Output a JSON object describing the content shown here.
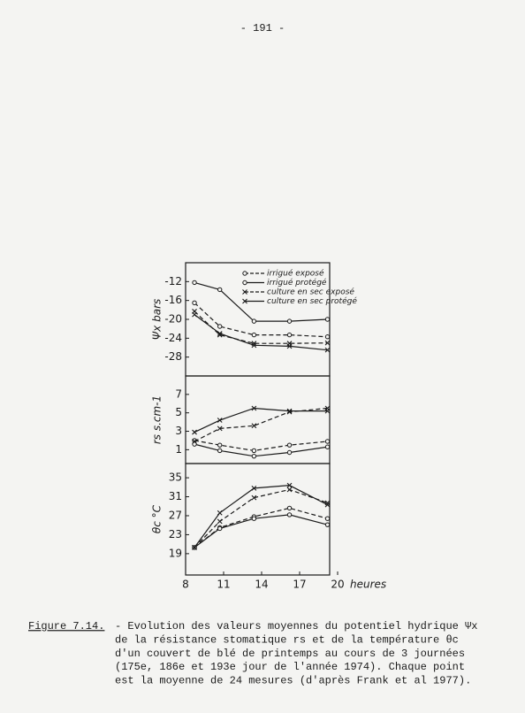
{
  "page_number": "- 191 -",
  "chart_data": [
    {
      "type": "line",
      "ylabel": "Ψx bars",
      "x": [
        8.7,
        10.7,
        13.4,
        16.2,
        19.2
      ],
      "xlim": [
        8,
        20
      ],
      "ylim": [
        -32,
        -8
      ],
      "yticks": [
        -12,
        -16,
        -20,
        -24,
        -28
      ],
      "legend": "top-right",
      "series": [
        {
          "name": "irrigué exposé",
          "color": "#1a1a1a",
          "dashed": true,
          "marker": "circle",
          "values": [
            -16.5,
            -21.5,
            -23.3,
            -23.3,
            -23.7
          ]
        },
        {
          "name": "irrigué protégé",
          "color": "#1a1a1a",
          "dashed": false,
          "marker": "circle",
          "values": [
            -12.2,
            -13.7,
            -20.4,
            -20.4,
            -20
          ]
        },
        {
          "name": "culture en sec exposé",
          "color": "#1a1a1a",
          "dashed": true,
          "marker": "cross",
          "values": [
            -18.3,
            -23.3,
            -25.1,
            -25.1,
            -25
          ]
        },
        {
          "name": "culture en sec protégé",
          "color": "#1a1a1a",
          "dashed": false,
          "marker": "cross",
          "values": [
            -19,
            -23,
            -25.5,
            -25.7,
            -26.5
          ]
        }
      ]
    },
    {
      "type": "line",
      "ylabel": "rs s.cm-1",
      "x": [
        8.7,
        10.7,
        13.4,
        16.2,
        19.2
      ],
      "xlim": [
        8,
        20
      ],
      "ylim": [
        -0.5,
        9
      ],
      "yticks": [
        7,
        5,
        3,
        1
      ],
      "series": [
        {
          "color": "#1a1a1a",
          "dashed": true,
          "marker": "circle",
          "values": [
            2.0,
            1.5,
            0.9,
            1.5,
            1.9
          ]
        },
        {
          "color": "#1a1a1a",
          "dashed": false,
          "marker": "circle",
          "values": [
            1.6,
            0.9,
            0.3,
            0.7,
            1.3
          ]
        },
        {
          "color": "#1a1a1a",
          "dashed": true,
          "marker": "cross",
          "values": [
            1.9,
            3.3,
            3.6,
            5.1,
            5.5
          ]
        },
        {
          "color": "#1a1a1a",
          "dashed": false,
          "marker": "cross",
          "values": [
            2.9,
            4.2,
            5.5,
            5.2,
            5.2
          ]
        }
      ]
    },
    {
      "type": "line",
      "ylabel": "θc °C",
      "xlabel": "heures",
      "x": [
        8.7,
        10.7,
        13.4,
        16.2,
        19.2
      ],
      "xlim": [
        8,
        20
      ],
      "xticks": [
        8,
        11,
        14,
        17,
        20
      ],
      "ylim": [
        14.5,
        38
      ],
      "yticks": [
        35,
        31,
        27,
        23,
        19
      ],
      "series": [
        {
          "color": "#1a1a1a",
          "dashed": true,
          "marker": "circle",
          "values": [
            20.3,
            24.5,
            26.8,
            28.6,
            26.4
          ]
        },
        {
          "color": "#1a1a1a",
          "dashed": false,
          "marker": "circle",
          "values": [
            20.3,
            24.3,
            26.4,
            27.2,
            25.1
          ]
        },
        {
          "color": "#1a1a1a",
          "dashed": true,
          "marker": "cross",
          "values": [
            20.3,
            25.8,
            30.8,
            32.5,
            29.7
          ]
        },
        {
          "color": "#1a1a1a",
          "dashed": false,
          "marker": "cross",
          "values": [
            20.3,
            27.6,
            32.8,
            33.4,
            29.3
          ]
        }
      ]
    }
  ],
  "caption": {
    "label": "Figure 7.14.",
    "lines": [
      "- Evolution des valeurs moyennes du potentiel hydrique Ψx",
      "de la résistance stomatique rs et de la température θc",
      "d'un couvert de blé de printemps au cours de 3 journées",
      "(175e, 186e et 193e jour de l'année 1974). Chaque point",
      "est la moyenne de 24 mesures (d'après Frank et al 1977)."
    ]
  }
}
